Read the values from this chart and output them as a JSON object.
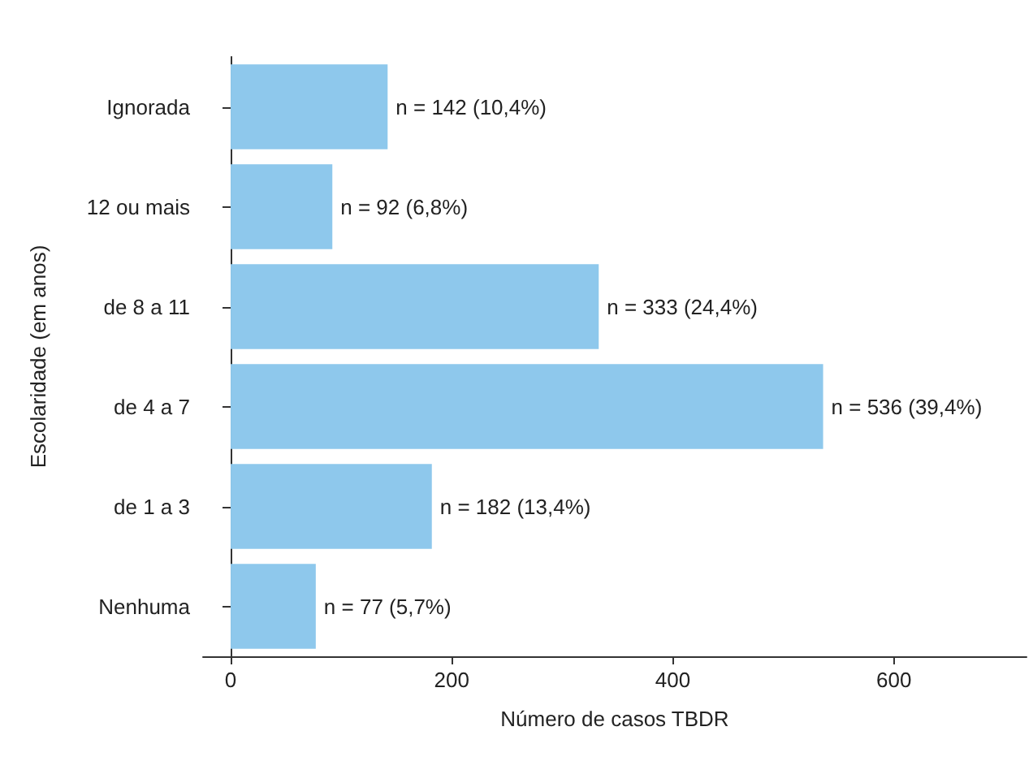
{
  "chart_data": {
    "type": "bar",
    "orientation": "horizontal",
    "xlabel": "Número de casos TBDR",
    "ylabel": "Escolaridade (em anos)",
    "categories": [
      "Ignorada",
      "12 ou mais",
      "de 8 a 11",
      "de 4 a 7",
      "de 1 a 3",
      "Nenhuma"
    ],
    "values": [
      142,
      92,
      333,
      536,
      182,
      77
    ],
    "value_labels": [
      "n = 142 (10,4%)",
      "n = 92 (6,8%)",
      "n = 333 (24,4%)",
      "n = 536 (39,4%)",
      "n = 182 (13,4%)",
      "n = 77 (5,7%)"
    ],
    "color": "#8ec8ec",
    "xlim": [
      -25,
      720
    ],
    "xticks": [
      0,
      200,
      400,
      600
    ],
    "grid": false
  }
}
